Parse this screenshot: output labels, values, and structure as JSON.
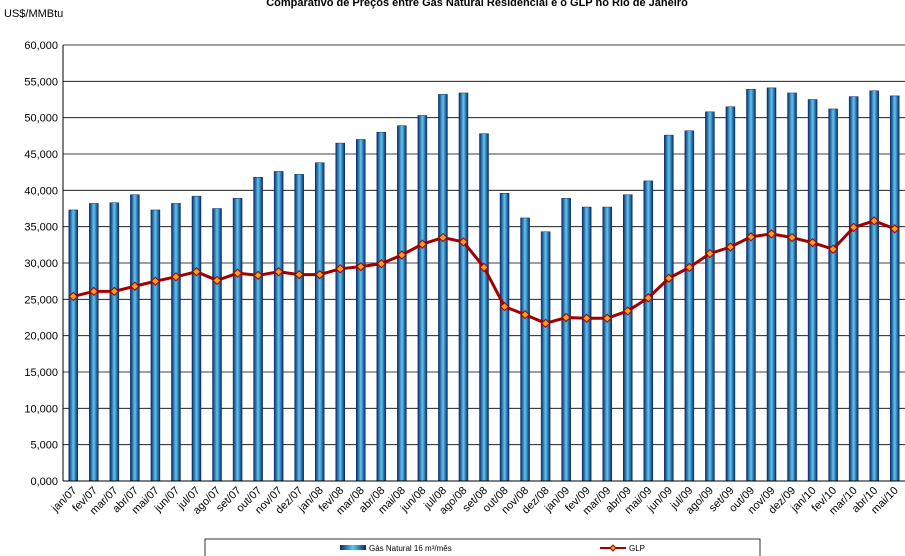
{
  "chart_data": {
    "type": "bar_line",
    "title": "Comparativo de Preços entre Gás Natural Residencial e o GLP no Rio de Janeiro",
    "y_label": "US$/MMBtu",
    "categories": [
      "jan/07",
      "fev/07",
      "mar/07",
      "abr/07",
      "mai/07",
      "jun/07",
      "jul/07",
      "ago/07",
      "set/07",
      "out/07",
      "nov/07",
      "dez/07",
      "jan/08",
      "fev/08",
      "mar/08",
      "abr/08",
      "mai/08",
      "jun/08",
      "jul/08",
      "ago/08",
      "set/08",
      "out/08",
      "nov/08",
      "dez/08",
      "jan/09",
      "fev/09",
      "mar/09",
      "abr/09",
      "mai/09",
      "jun/09",
      "jul/09",
      "ago/09",
      "set/09",
      "out/09",
      "nov/09",
      "dez/09",
      "jan/10",
      "fev/10",
      "mar/10",
      "abr/10",
      "mai/10"
    ],
    "series": [
      {
        "name": "Gás Natural 16 m³/mês",
        "type": "bar",
        "color": "#1f6fa8",
        "values": [
          37300,
          38200,
          38300,
          39400,
          37300,
          38200,
          39200,
          37500,
          38900,
          41800,
          42600,
          42200,
          43800,
          46500,
          47000,
          48000,
          48900,
          50300,
          53200,
          53400,
          47800,
          39600,
          36200,
          34300,
          38900,
          37700,
          37700,
          39400,
          41300,
          47600,
          48200,
          50800,
          51500,
          53900,
          54100,
          53400,
          52500,
          51200,
          52900,
          53700,
          53000
        ]
      },
      {
        "name": "GLP",
        "type": "line",
        "color": "#a00000",
        "values": [
          25400,
          26100,
          26100,
          26800,
          27500,
          28100,
          28800,
          27600,
          28600,
          28300,
          28800,
          28400,
          28400,
          29200,
          29500,
          29900,
          31100,
          32600,
          33500,
          32900,
          29400,
          24000,
          22900,
          21700,
          22500,
          22400,
          22400,
          23400,
          25200,
          27900,
          29400,
          31300,
          32200,
          33600,
          34000,
          33500,
          32800,
          31900,
          34900,
          35800,
          34700
        ]
      }
    ],
    "ylim": [
      0,
      60000
    ],
    "yticks": [
      {
        "value": 0,
        "label": "0,000"
      },
      {
        "value": 5000,
        "label": "5,000"
      },
      {
        "value": 10000,
        "label": "10,000"
      },
      {
        "value": 15000,
        "label": "15,000"
      },
      {
        "value": 20000,
        "label": "20,000"
      },
      {
        "value": 25000,
        "label": "25,000"
      },
      {
        "value": 30000,
        "label": "30,000"
      },
      {
        "value": 35000,
        "label": "35,000"
      },
      {
        "value": 40000,
        "label": "40,000"
      },
      {
        "value": 45000,
        "label": "45,000"
      },
      {
        "value": 50000,
        "label": "50,000"
      },
      {
        "value": 55000,
        "label": "55,000"
      },
      {
        "value": 60000,
        "label": "60,000"
      }
    ],
    "grid": true
  }
}
